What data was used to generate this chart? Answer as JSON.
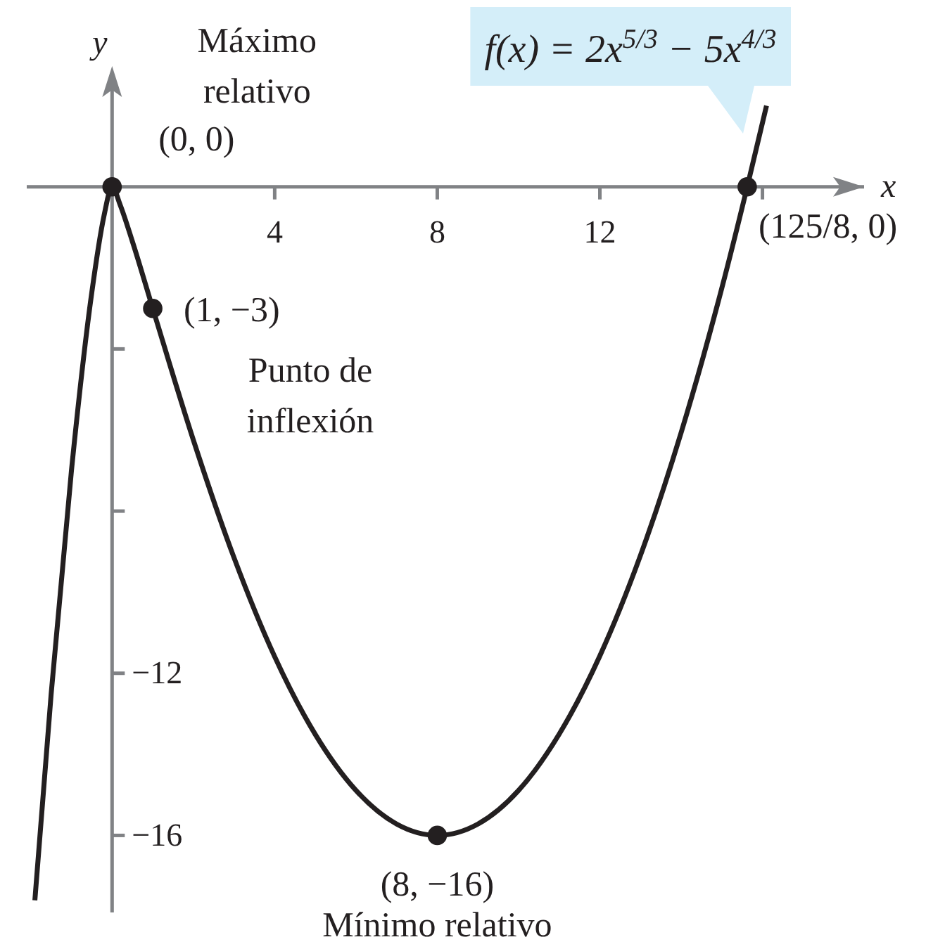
{
  "chart_data": {
    "type": "line",
    "title": "f(x) = 2x$^{5/3}$ − 5x$^{4/3}$",
    "xlabel": "x",
    "ylabel": "y",
    "xlim": [
      -2.1,
      18.5
    ],
    "ylim": [
      -17.9,
      2.7
    ],
    "xticks": [
      4,
      8,
      12,
      {
        "value": 16,
        "label": null
      }
    ],
    "yticks": [
      {
        "value": -4,
        "label": null
      },
      {
        "value": -8,
        "label": null
      },
      {
        "value": -12,
        "label": "−12"
      },
      {
        "value": -16,
        "label": "−16"
      }
    ],
    "grid": false,
    "series": [
      {
        "color": "#231f20",
        "marker": "none",
        "x": [
          -1.9,
          -1.5,
          -1,
          -0.5,
          -0.2,
          0,
          0.2,
          0.5,
          1,
          2,
          3,
          4,
          5,
          6,
          7,
          8,
          9,
          10,
          11,
          12,
          13,
          14,
          15,
          15.625,
          16.1
        ],
        "values": [
          -17.6,
          -12.52,
          -7,
          -2.61,
          -0.72,
          0,
          -0.45,
          -1.35,
          -3,
          -6.25,
          -9.15,
          -11.59,
          -13.51,
          -14.89,
          -15.72,
          -16,
          -15.72,
          -14.89,
          -13.5,
          -11.57,
          -9.09,
          -6.06,
          -2.5,
          0,
          2.0
        ]
      },
      {
        "type": "scatter",
        "color": "#231f20",
        "marker": "circle",
        "x": [
          0,
          1,
          8,
          15.625
        ],
        "values": [
          0,
          -3,
          -16,
          0
        ]
      }
    ],
    "annotations": [
      "Máximo relativo",
      {
        "text": "(0, 0)",
        "x": 0,
        "y": 0
      },
      {
        "text": "(1, −3)",
        "x": 1,
        "y": -3
      },
      {
        "text": "Punto de inflexión",
        "x": 1,
        "y": -3
      },
      {
        "text": "(8, −16)",
        "x": 8,
        "y": -16
      },
      {
        "text": "Mínimo relativo",
        "x": 8,
        "y": -16
      },
      {
        "text": "(125/8, 0)",
        "x": 15.625,
        "y": 0
      }
    ]
  }
}
